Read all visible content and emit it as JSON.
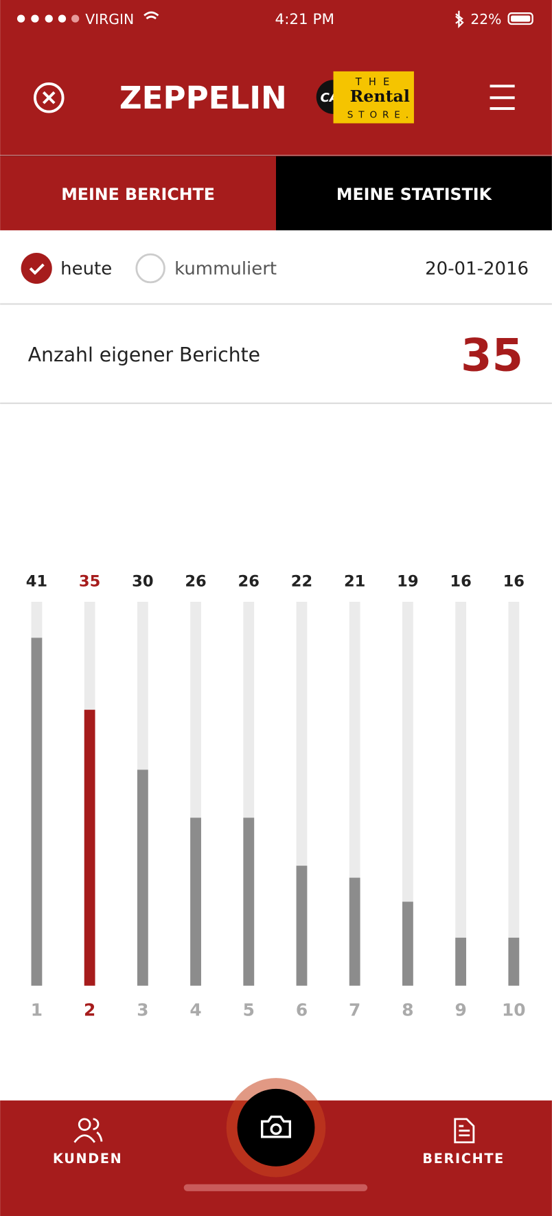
{
  "status_bar": {
    "carrier": "VIRGIN",
    "time": "4:21 PM",
    "battery": "22%"
  },
  "header": {
    "brand": "ZEPPELIN",
    "logo_cat": "CAT",
    "logo_the": "THE",
    "logo_rental": "Rental",
    "logo_store": "STORE."
  },
  "tabs": [
    "MEINE BERICHTE",
    "MEINE STATISTIK"
  ],
  "filters": {
    "options": [
      "heute",
      "kummuliert"
    ],
    "date": "20-01-2016"
  },
  "summary": {
    "label": "Anzahl eigener Berichte",
    "value": 35
  },
  "chart_data": {
    "type": "bar",
    "categories": [
      "1",
      "2",
      "3",
      "4",
      "5",
      "6",
      "7",
      "8",
      "9",
      "10"
    ],
    "values": [
      41,
      35,
      30,
      26,
      26,
      22,
      21,
      19,
      16,
      16
    ],
    "colors": [
      "#8c8c8c",
      "#a61c1c",
      "#8c8c8c",
      "#8c8c8c",
      "#8c8c8c",
      "#8c8c8c",
      "#8c8c8c",
      "#8c8c8c",
      "#8c8c8c",
      "#8c8c8c"
    ],
    "label_colors": [
      "#222222",
      "#a61c1c",
      "#222222",
      "#222222",
      "#222222",
      "#222222",
      "#222222",
      "#222222",
      "#222222",
      "#222222"
    ],
    "category_colors": [
      "#aaaaaa",
      "#a61c1c",
      "#aaaaaa",
      "#aaaaaa",
      "#aaaaaa",
      "#aaaaaa",
      "#aaaaaa",
      "#aaaaaa",
      "#aaaaaa",
      "#aaaaaa"
    ],
    "track_color": "#ebebeb",
    "ylim": [
      12,
      44
    ]
  },
  "nav": [
    "KUNDEN",
    "BERICHTE"
  ]
}
